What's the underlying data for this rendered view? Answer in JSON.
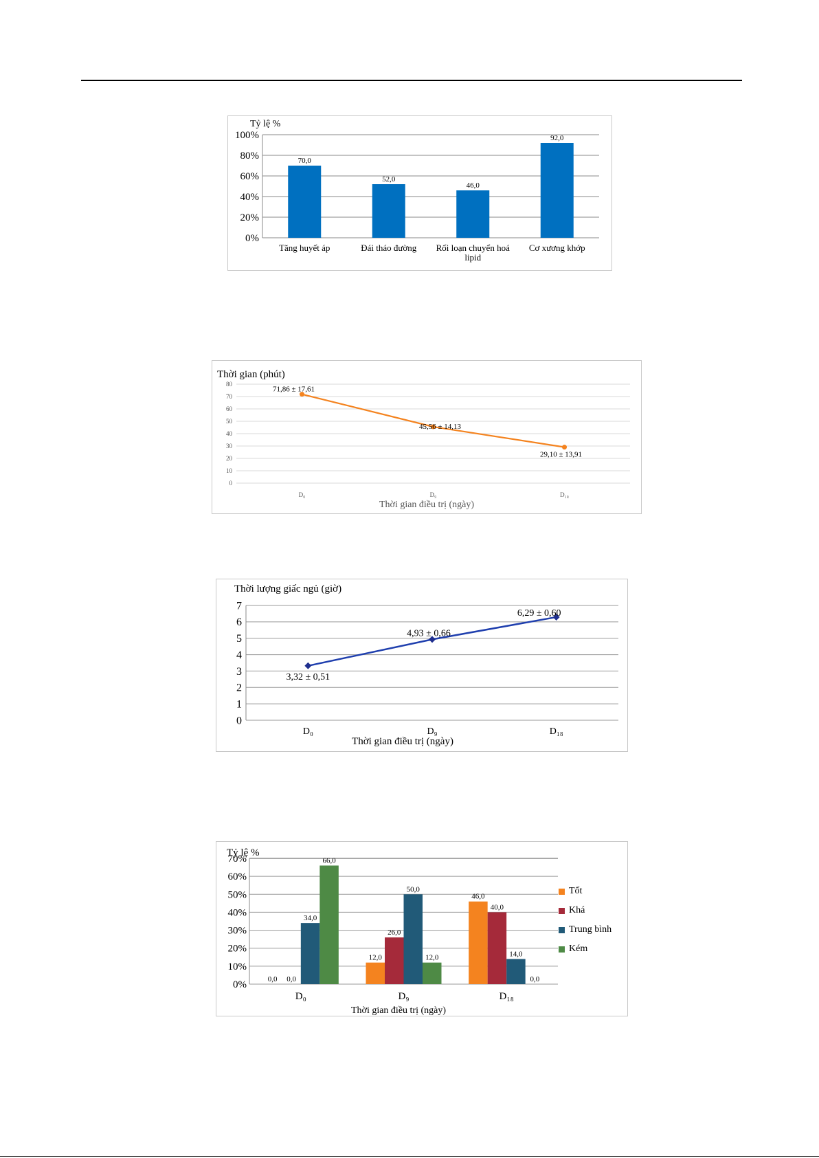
{
  "chart_data": [
    {
      "type": "bar",
      "ylabel": "Tỷ lệ %",
      "ylim": [
        0,
        100
      ],
      "yticks": [
        "0%",
        "20%",
        "40%",
        "60%",
        "80%",
        "100%"
      ],
      "categories": [
        "Tăng huyết áp",
        "Đái tháo đường",
        "Rối loạn chuyển hoá lipid",
        "Cơ xương khớp"
      ],
      "values": [
        70.0,
        52.0,
        46.0,
        92.0
      ],
      "data_labels": [
        "70,0",
        "52,0",
        "46,0",
        "92,0"
      ],
      "colors": {
        "bar": "#0070c0"
      },
      "grid": true
    },
    {
      "type": "line",
      "ylabel": "Thời gian (phút)",
      "xlabel": "Thời gian điều trị (ngày)",
      "ylim": [
        0,
        80
      ],
      "yticks": [
        "0",
        "10",
        "20",
        "30",
        "40",
        "50",
        "60",
        "70",
        "80"
      ],
      "categories": [
        "D₀",
        "D₉",
        "D₁₈"
      ],
      "values": [
        71.86,
        45.56,
        29.1
      ],
      "data_labels": [
        "71,86 ± 17,61",
        "45,56 ± 14,13",
        "29,10 ± 13,91"
      ],
      "colors": {
        "line": "#f4831f"
      },
      "grid": true
    },
    {
      "type": "line",
      "ylabel": "Thời lượng giấc ngủ (giờ)",
      "xlabel": "Thời gian điều trị (ngày)",
      "ylim": [
        0,
        7
      ],
      "yticks": [
        "0",
        "1",
        "2",
        "3",
        "4",
        "5",
        "6",
        "7"
      ],
      "categories": [
        "D₀",
        "D₉",
        "D₁₈"
      ],
      "values": [
        3.32,
        4.93,
        6.29
      ],
      "data_labels": [
        "3,32 ± 0,51",
        "4,93 ± 0,66",
        "6,29 ± 0,60"
      ],
      "colors": {
        "line": "#1f3fae",
        "marker": "#1f2f8f"
      },
      "grid": true
    },
    {
      "type": "bar",
      "ylabel": "Tỷ lệ %",
      "xlabel": "Thời gian điều trị (ngày)",
      "ylim": [
        0,
        70
      ],
      "yticks": [
        "0%",
        "10%",
        "20%",
        "30%",
        "40%",
        "50%",
        "60%",
        "70%"
      ],
      "categories": [
        "D₀",
        "D₉",
        "D₁₈"
      ],
      "series": [
        {
          "name": "Tốt",
          "values": [
            0.0,
            12.0,
            46.0
          ],
          "labels": [
            "0,0",
            "12,0",
            "46,0"
          ],
          "color": "#f4831f"
        },
        {
          "name": "Khá",
          "values": [
            0.0,
            26.0,
            40.0
          ],
          "labels": [
            "0,0",
            "26,0",
            "40,0"
          ],
          "color": "#a52a3a"
        },
        {
          "name": "Trung bình",
          "values": [
            34.0,
            50.0,
            14.0
          ],
          "labels": [
            "34,0",
            "50,0",
            "14,0"
          ],
          "color": "#215a78"
        },
        {
          "name": "Kém",
          "values": [
            66.0,
            12.0,
            0.0
          ],
          "labels": [
            "66,0",
            "12,0",
            "0,0"
          ],
          "color": "#4e8a45"
        }
      ],
      "legend": "right",
      "grid": true
    }
  ]
}
